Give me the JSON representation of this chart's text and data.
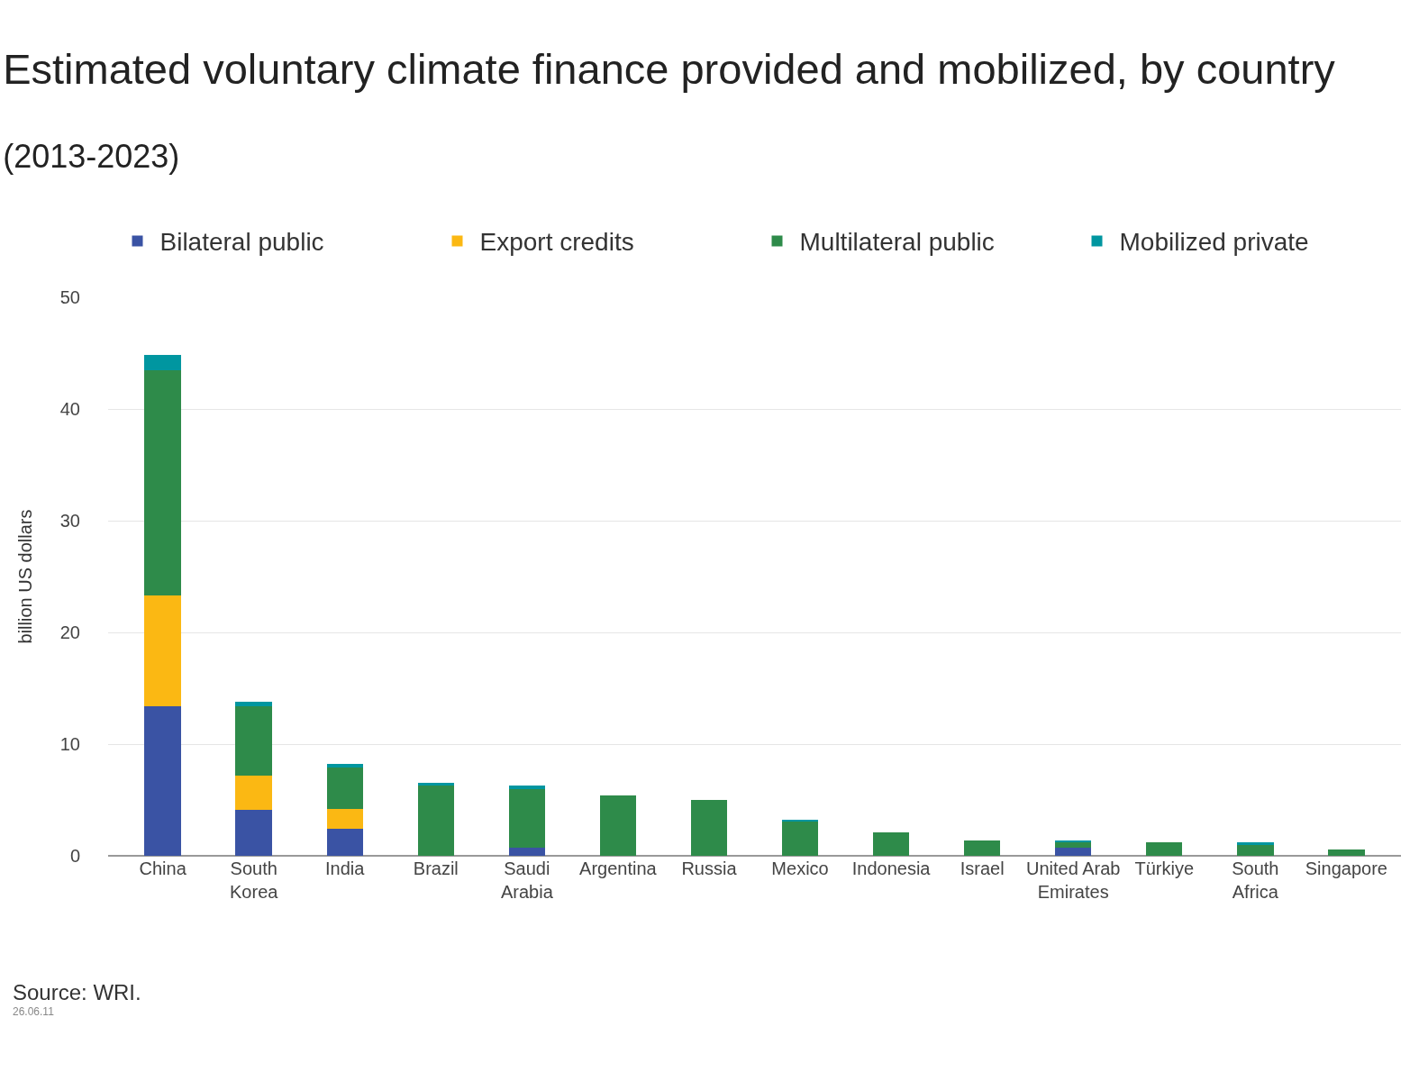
{
  "chart_data": {
    "type": "bar",
    "stacked": true,
    "title": "Estimated voluntary climate finance provided and mobilized, by country",
    "subtitle": "(2013-2023)",
    "ylabel": "billion US dollars",
    "categories": [
      "China",
      "South Korea",
      "India",
      "Brazil",
      "Saudi Arabia",
      "Argentina",
      "Russia",
      "Mexico",
      "Indonesia",
      "Israel",
      "United Arab Emirates",
      "Türkiye",
      "South Africa",
      "Singapore"
    ],
    "series": [
      {
        "name": "Bilateral public",
        "color": "#3a53a4",
        "values": [
          13.4,
          4.1,
          2.4,
          0,
          0.7,
          0,
          0,
          0,
          0,
          0,
          0.7,
          0,
          0,
          0
        ]
      },
      {
        "name": "Export credits",
        "color": "#fbb813",
        "values": [
          9.9,
          3.1,
          1.8,
          0,
          0,
          0,
          0,
          0,
          0,
          0,
          0,
          0,
          0,
          0
        ]
      },
      {
        "name": "Multilateral public",
        "color": "#2e8b4a",
        "values": [
          20.2,
          6.2,
          3.7,
          6.3,
          5.3,
          5.4,
          5.0,
          3.1,
          2.1,
          1.4,
          0.5,
          1.2,
          1.0,
          0.6
        ]
      },
      {
        "name": "Mobilized private",
        "color": "#0096a0",
        "values": [
          1.3,
          0.4,
          0.3,
          0.2,
          0.3,
          0,
          0,
          0.1,
          0,
          0,
          0.2,
          0,
          0.2,
          0
        ]
      }
    ],
    "ylim": [
      0,
      50
    ],
    "yticks": [
      0,
      10,
      20,
      30,
      40,
      50
    ],
    "grid": "y",
    "legend": "top",
    "annotations": [
      "Source: WRI.",
      "26.06.11"
    ]
  }
}
